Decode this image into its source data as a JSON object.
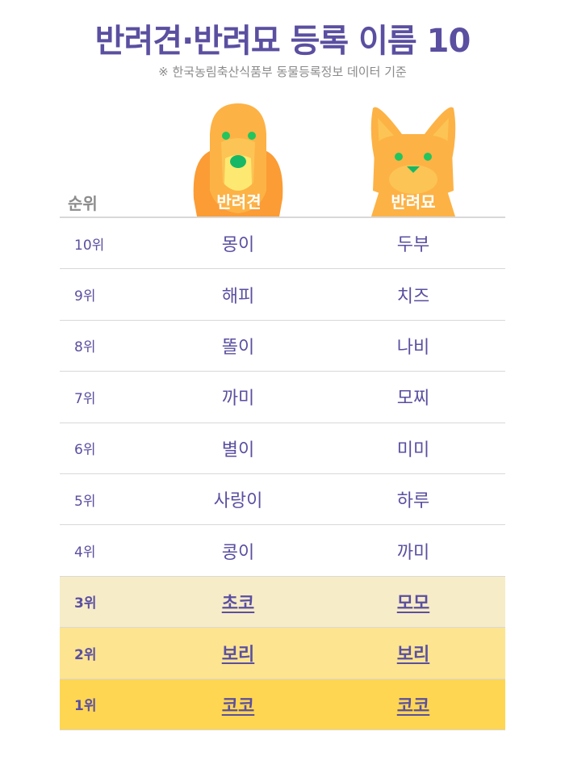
{
  "title": "반려견·반려묘 등록 이름 10",
  "subtitle": "※ 한국농림축산식품부 동물등록정보 데이터 기준",
  "header": {
    "rank": "순위",
    "dog": "반려견",
    "cat": "반려묘"
  },
  "colors": {
    "accent": "#5a4fa0",
    "rank3_bg": "#f7ecc8",
    "rank2_bg": "#fce491",
    "rank1_bg": "#fed651",
    "pet_orange": "#fb9c35"
  },
  "rows": [
    {
      "rank": "10위",
      "dog": "몽이",
      "cat": "두부"
    },
    {
      "rank": "9위",
      "dog": "해피",
      "cat": "치즈"
    },
    {
      "rank": "8위",
      "dog": "똘이",
      "cat": "나비"
    },
    {
      "rank": "7위",
      "dog": "까미",
      "cat": "모찌"
    },
    {
      "rank": "6위",
      "dog": "별이",
      "cat": "미미"
    },
    {
      "rank": "5위",
      "dog": "사랑이",
      "cat": "하루"
    },
    {
      "rank": "4위",
      "dog": "콩이",
      "cat": "까미"
    },
    {
      "rank": "3위",
      "dog": "초코",
      "cat": "모모"
    },
    {
      "rank": "2위",
      "dog": "보리",
      "cat": "보리"
    },
    {
      "rank": "1위",
      "dog": "코코",
      "cat": "코코"
    }
  ]
}
